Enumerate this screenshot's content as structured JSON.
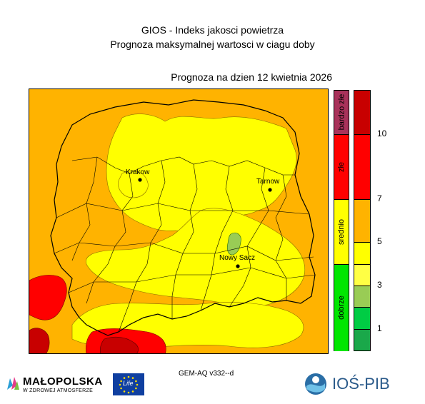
{
  "title_line1": "GIOS - Indeks jakosci powietrza",
  "title_line2": "Prognoza maksymalnej wartosci w ciagu doby",
  "date_label": "Prognoza na dzien  12 kwietnia 2026",
  "cities": [
    {
      "name": "Krakow"
    },
    {
      "name": "Tarnow"
    },
    {
      "name": "Nowy Sacz"
    }
  ],
  "categories": [
    {
      "label": "bardzo złe",
      "color": "#a8325a",
      "from": 10,
      "to": 12
    },
    {
      "label": "złe",
      "color": "#ff0000",
      "from": 7,
      "to": 10
    },
    {
      "label": "srednio",
      "color": "#ffff00",
      "from": 4,
      "to": 7
    },
    {
      "label": "dobrze",
      "color": "#00e600",
      "from": 0,
      "to": 4
    }
  ],
  "scale": {
    "min": 0,
    "max": 12,
    "levels": [
      {
        "from": 0,
        "to": 1,
        "color": "#1aa84a"
      },
      {
        "from": 1,
        "to": 2,
        "color": "#00cc44"
      },
      {
        "from": 2,
        "to": 3,
        "color": "#99cc55"
      },
      {
        "from": 3,
        "to": 4,
        "color": "#ffff44"
      },
      {
        "from": 4,
        "to": 5,
        "color": "#ffff00"
      },
      {
        "from": 5,
        "to": 7,
        "color": "#ffb300"
      },
      {
        "from": 7,
        "to": 10,
        "color": "#ff0000"
      },
      {
        "from": 10,
        "to": 12,
        "color": "#c80000"
      }
    ],
    "ticks": [
      1,
      3,
      5,
      7,
      10
    ]
  },
  "model_label": "GEM-AQ v332--d",
  "logos": {
    "malopolska": "MAŁOPOLSKA",
    "malopolska_sub": "W ZDROWEJ ATMOSFERZE",
    "eu": "Life",
    "ios": "IOŚ-PIB"
  },
  "colors": {
    "orange": "#ffb300",
    "yellow": "#ffff00",
    "red": "#ff0000",
    "darkred": "#c80000",
    "lightgreen": "#99cc55",
    "border": "#000000"
  }
}
